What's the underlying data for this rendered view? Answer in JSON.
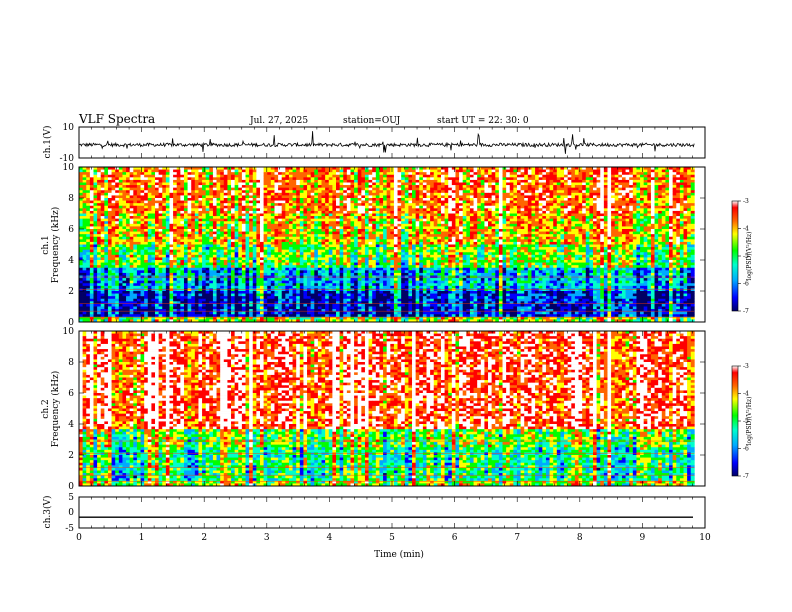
{
  "header": {
    "title": "VLF Spectra",
    "date": "Jul. 27, 2025",
    "station": "station=OUJ",
    "start": "start UT =  22: 30: 0"
  },
  "chart_data": [
    {
      "type": "line",
      "name": "ch1-waveform",
      "ylabel": "ch.1(V)",
      "ylim": [
        -10,
        10
      ],
      "yticks": [
        "10",
        "-10"
      ],
      "xlim": [
        0,
        10
      ],
      "baseline": -1.5,
      "noise": "spiky"
    },
    {
      "type": "heatmap",
      "name": "ch1-spectrogram",
      "ylabel": "ch.1\nFrequency (kHz)",
      "ylim": [
        0,
        10
      ],
      "yticks": [
        "0",
        "2",
        "4",
        "6",
        "8",
        "10"
      ],
      "xlim": [
        0,
        10
      ],
      "data_xmax": 9.83,
      "colorbar": {
        "label": "log(PSD)(V²/Hz)",
        "range": [
          -7,
          -3
        ],
        "ticks": [
          "-3",
          "-4",
          "-5",
          "-6",
          "-7"
        ]
      }
    },
    {
      "type": "heatmap",
      "name": "ch2-spectrogram",
      "ylabel": "ch.2\nFrequency (kHz)",
      "ylim": [
        0,
        10
      ],
      "yticks": [
        "0",
        "2",
        "4",
        "6",
        "8",
        "10"
      ],
      "xlim": [
        0,
        10
      ],
      "data_xmax": 9.83,
      "colorbar": {
        "label": "log(PSD)(V²/Hz)",
        "range": [
          -7,
          -3
        ],
        "ticks": [
          "-3",
          "-4",
          "-5",
          "-6",
          "-7"
        ]
      }
    },
    {
      "type": "line",
      "name": "ch3-waveform",
      "ylabel": "ch.3(V)",
      "ylim": [
        -5,
        5
      ],
      "yticks": [
        "5",
        "0",
        "-5"
      ],
      "xlim": [
        0,
        10
      ],
      "xticks": [
        "0",
        "1",
        "2",
        "3",
        "4",
        "5",
        "6",
        "7",
        "8",
        "9",
        "10"
      ],
      "xlabel": "Time (min)",
      "baseline": -1.5
    }
  ],
  "colors": {
    "colormap": [
      "#000066",
      "#0000ff",
      "#00aaff",
      "#00ffcc",
      "#00ff00",
      "#ffff00",
      "#ff6600",
      "#ff0000",
      "#ffffff"
    ]
  }
}
